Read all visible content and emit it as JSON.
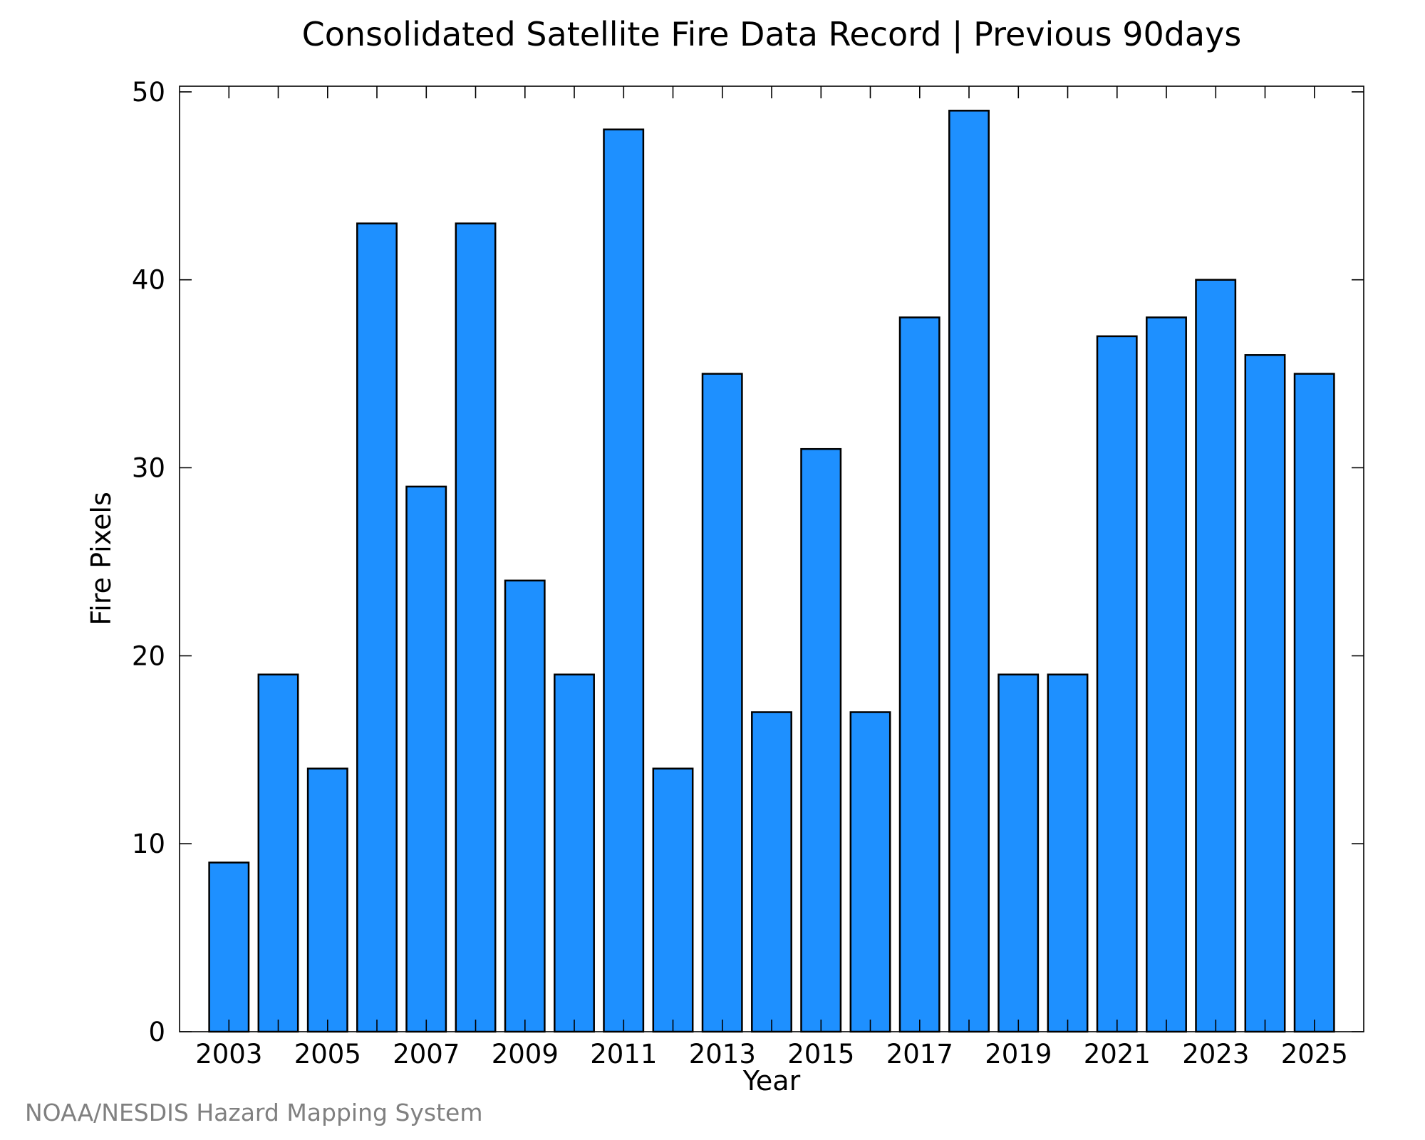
{
  "chart_data": {
    "type": "bar",
    "title": "Consolidated Satellite Fire Data Record | Previous 90days",
    "xlabel": "Year",
    "ylabel": "Fire Pixels",
    "categories": [
      "2003",
      "2004",
      "2005",
      "2006",
      "2007",
      "2008",
      "2009",
      "2010",
      "2011",
      "2012",
      "2013",
      "2014",
      "2015",
      "2016",
      "2017",
      "2018",
      "2019",
      "2020",
      "2021",
      "2022",
      "2023",
      "2024",
      "2025"
    ],
    "values": [
      9,
      19,
      14,
      43,
      29,
      43,
      24,
      19,
      48,
      14,
      35,
      17,
      31,
      17,
      38,
      49,
      19,
      19,
      37,
      38,
      40,
      36,
      35
    ],
    "x_tick_labels": [
      "2003",
      "2005",
      "2007",
      "2009",
      "2011",
      "2013",
      "2015",
      "2017",
      "2019",
      "2021",
      "2023",
      "2025"
    ],
    "y_ticks": [
      0,
      10,
      20,
      30,
      40,
      50
    ],
    "ylim": [
      0,
      50.3
    ],
    "grid": false,
    "bar_color": "#1e90ff",
    "bar_edge_color": "#000000"
  },
  "credit": "NOAA/NESDIS Hazard Mapping System"
}
